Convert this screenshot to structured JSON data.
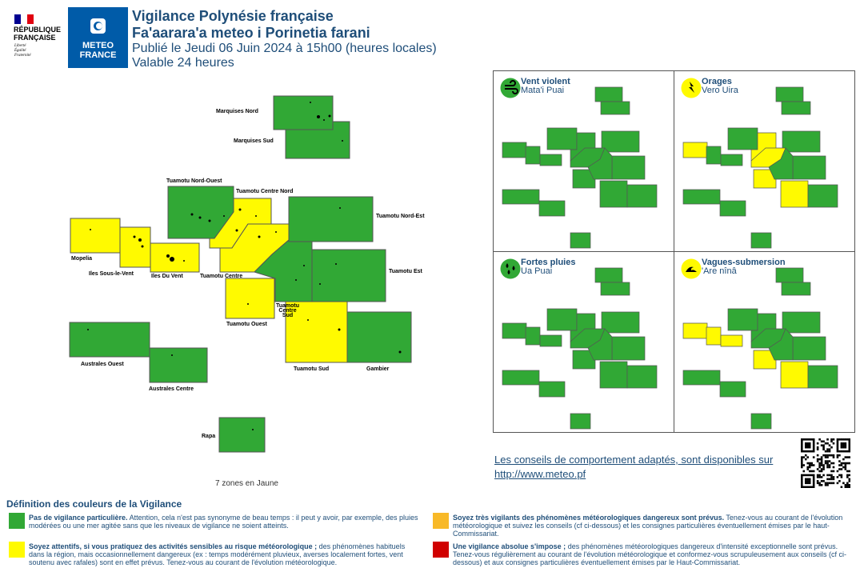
{
  "header": {
    "rf_line1": "RÉPUBLIQUE",
    "rf_line2": "FRANÇAISE",
    "rf_motto1": "Liberté",
    "rf_motto2": "Égalité",
    "rf_motto3": "Fraternité",
    "mf_line1": "METEO",
    "mf_line2": "FRANCE",
    "title": "Vigilance Polynésie française",
    "title2": "Fa'aarara'a meteo i Porinetia farani",
    "published": "Publié le Jeudi 06 Juin 2024 à 15h00 (heures locales)",
    "validity": "Valable 24 heures"
  },
  "colors": {
    "green": "#31a835",
    "yellow": "#fffa00",
    "orange": "#f8b928",
    "red": "#d00000",
    "accent": "#1f4e79"
  },
  "map": {
    "zones": [
      {
        "name": "Marquises Nord",
        "level": "green"
      },
      {
        "name": "Marquises Sud",
        "level": "green"
      },
      {
        "name": "Tuamotu Nord-Ouest",
        "level": "green"
      },
      {
        "name": "Tuamotu Centre Nord",
        "level": "yellow"
      },
      {
        "name": "Tuamotu Nord-Est",
        "level": "green"
      },
      {
        "name": "Mopelia",
        "level": "yellow"
      },
      {
        "name": "Iles Sous-le-Vent",
        "level": "yellow"
      },
      {
        "name": "Iles Du Vent",
        "level": "yellow"
      },
      {
        "name": "Tuamotu Centre",
        "level": "yellow"
      },
      {
        "name": "Tuamotu Est",
        "level": "green"
      },
      {
        "name": "Tuamotu Ouest",
        "level": "yellow"
      },
      {
        "name": "Tuamotu Centre Sud",
        "level": "green"
      },
      {
        "name": "Tuamotu Sud",
        "level": "yellow"
      },
      {
        "name": "Gambier",
        "level": "green"
      },
      {
        "name": "Australes Ouest",
        "level": "green"
      },
      {
        "name": "Australes Centre",
        "level": "green"
      },
      {
        "name": "Rapa",
        "level": "green"
      }
    ],
    "label_centre_sud": [
      "Tuamotu",
      "Centre",
      "Sud"
    ],
    "summary": "7 zones en Jaune"
  },
  "panels": [
    {
      "title": "Vent violent",
      "subtitle": "Mata'i Puai",
      "icon": "wind-icon"
    },
    {
      "title": "Orages",
      "subtitle": "Vero Uira",
      "icon": "lightning-icon"
    },
    {
      "title": "Fortes pluies",
      "subtitle": "Ua Puai",
      "icon": "rain-icon"
    },
    {
      "title": "Vagues-submersion",
      "subtitle": "'Are nînâ",
      "icon": "wave-icon"
    }
  ],
  "advice": {
    "text": "Les conseils de comportement adaptés, sont disponibles sur",
    "url": "http://www.meteo.pf"
  },
  "legend": {
    "title": "Définition des couleurs de la Vigilance",
    "green_bold": "Pas de vigilance particulière.",
    "green_text": " Attention, cela n'est pas synonyme de beau temps : il peut y avoir, par exemple, des pluies modérées ou une mer agitée sans que les niveaux de vigilance ne soient atteints.",
    "yellow_bold": "Soyez attentifs, si vous pratiquez des activités sensibles au risque météorologique ;",
    "yellow_text": " des phénomènes habituels dans la région, mais occasionnellement dangereux (ex : temps modérément pluvieux, averses localement fortes, vent soutenu avec rafales) sont en effet prévus. Tenez-vous au courant de l'évolution météorologique.",
    "orange_bold": "Soyez très vigilants des phénomènes météorologiques dangereux sont prévus.",
    "orange_text": " Tenez-vous au courant de l'évolution météorologique et suivez les conseils (cf ci-dessous) et les consignes particulières éventuellement émises par le haut-Commissariat.",
    "red_bold": "Une vigilance absolue s'impose ;",
    "red_text": " des phénomènes météorologiques dangereux d'intensité exceptionnelle sont prévus. Tenez-vous régulièrement au courant de l'évolution météorologique et conformez-vous scrupuleusement aux conseils (cf ci-dessous) et aux consignes particulières éventuellement émises par le Haut-Commissariat."
  }
}
